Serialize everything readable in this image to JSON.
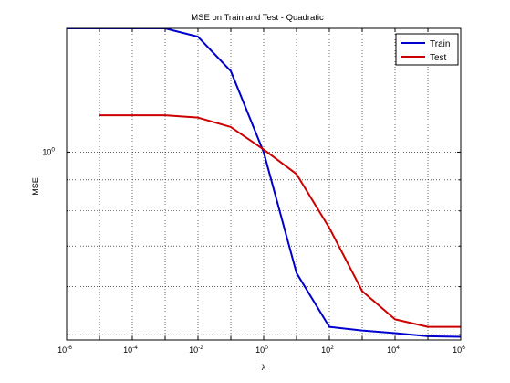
{
  "chart_data": {
    "type": "line",
    "title": "MSE on Train and Test - Quadratic",
    "xlabel": "λ",
    "ylabel": "MSE",
    "x_scale": "log",
    "y_scale": "log",
    "xlim": [
      1e-06,
      1000000
    ],
    "ylim": [
      0.49,
      1.6
    ],
    "grid": true,
    "legend_position": "top-right",
    "x_ticks": [
      {
        "value": 1e-06,
        "base": "10",
        "exp": "-6"
      },
      {
        "value": 0.0001,
        "base": "10",
        "exp": "-4"
      },
      {
        "value": 0.01,
        "base": "10",
        "exp": "-2"
      },
      {
        "value": 1,
        "base": "10",
        "exp": "0"
      },
      {
        "value": 100,
        "base": "10",
        "exp": "2"
      },
      {
        "value": 10000,
        "base": "10",
        "exp": "4"
      },
      {
        "value": 1000000,
        "base": "10",
        "exp": "6"
      }
    ],
    "y_ticks": [
      {
        "value": 1,
        "base": "10",
        "exp": "0"
      }
    ],
    "series": [
      {
        "name": "Train",
        "color": "#0000cc",
        "x": [
          1e-06,
          1e-05,
          0.0001,
          0.001,
          0.01,
          0.1,
          1,
          10,
          100,
          1000,
          10000,
          100000,
          1000000
        ],
        "y": [
          1.6,
          1.6,
          1.6,
          1.6,
          1.55,
          1.36,
          1.0,
          0.632,
          0.515,
          0.508,
          0.503,
          0.497,
          0.496
        ]
      },
      {
        "name": "Test",
        "color": "#cc0000",
        "x": [
          1e-05,
          0.0001,
          0.001,
          0.01,
          0.1,
          1,
          10,
          100,
          1000,
          10000,
          100000,
          1000000
        ],
        "y": [
          1.15,
          1.15,
          1.15,
          1.14,
          1.1,
          1.01,
          0.92,
          0.75,
          0.59,
          0.53,
          0.515,
          0.515
        ]
      }
    ]
  }
}
